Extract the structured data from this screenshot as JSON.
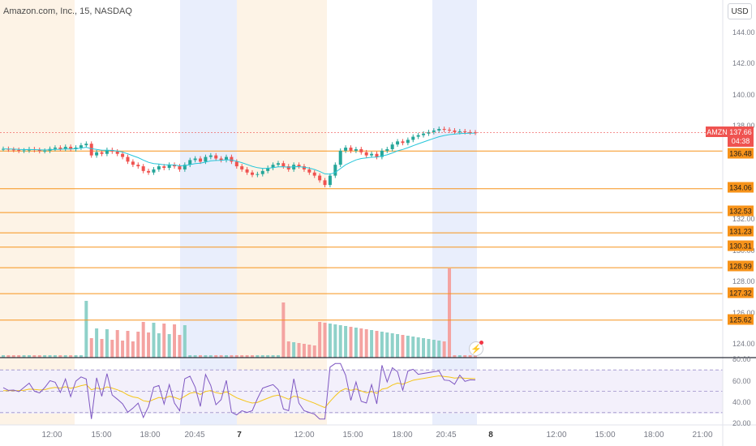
{
  "header": {
    "title": "Amazon.com, Inc., 15, NASDAQ",
    "currency": "USD"
  },
  "price_axis": {
    "ticks": [
      "144.00",
      "142.00",
      "140.00",
      "138.00",
      "132.00",
      "130.00",
      "128.00",
      "126.00",
      "124.00"
    ],
    "current": {
      "ticker": "AMZN",
      "price": "137.66",
      "countdown": "04:38"
    },
    "levels": [
      "136.48",
      "134.06",
      "132.53",
      "131.23",
      "130.31",
      "128.99",
      "127.32",
      "125.62"
    ]
  },
  "osc_axis": {
    "ticks": [
      "80.00",
      "60.00",
      "40.00",
      "20.00"
    ]
  },
  "time_axis": {
    "ticks": [
      {
        "label": "12:00",
        "bold": false
      },
      {
        "label": "15:00",
        "bold": false
      },
      {
        "label": "18:00",
        "bold": false
      },
      {
        "label": "20:45",
        "bold": false
      },
      {
        "label": "7",
        "bold": true
      },
      {
        "label": "12:00",
        "bold": false
      },
      {
        "label": "15:00",
        "bold": false
      },
      {
        "label": "18:00",
        "bold": false
      },
      {
        "label": "20:45",
        "bold": false
      },
      {
        "label": "8",
        "bold": true
      },
      {
        "label": "12:00",
        "bold": false
      },
      {
        "label": "15:00",
        "bold": false
      },
      {
        "label": "18:00",
        "bold": false
      },
      {
        "label": "21:00",
        "bold": false
      }
    ]
  },
  "colors": {
    "up": "#26a69a",
    "down": "#ef5350",
    "level_line": "#f7931a",
    "ma_line": "#26c6da",
    "rsi_line": "#7e57c2",
    "rsi_ma": "#f5c518",
    "premarket_bg": "#fdf3e6",
    "afterhours_bg": "#e9eefc"
  },
  "icons": {
    "flash": "lightning-bolt-icon"
  },
  "chart_data": {
    "type": "candlestick",
    "symbol": "AMZN",
    "interval": "15",
    "ylim": [
      122,
      145
    ],
    "close_series": [
      136.62,
      136.58,
      136.55,
      136.5,
      136.52,
      136.6,
      136.55,
      136.48,
      136.5,
      136.62,
      136.7,
      136.62,
      136.75,
      136.6,
      136.7,
      136.85,
      136.95,
      136.2,
      136.4,
      136.3,
      136.55,
      136.45,
      136.3,
      136.1,
      135.8,
      135.6,
      135.5,
      135.2,
      135.1,
      135.3,
      135.5,
      135.4,
      135.6,
      135.5,
      135.3,
      135.6,
      135.9,
      136.0,
      135.8,
      136.1,
      136.2,
      136.0,
      135.9,
      136.1,
      135.8,
      135.5,
      135.3,
      135.1,
      134.95,
      135.0,
      135.2,
      135.4,
      135.6,
      135.7,
      135.5,
      135.3,
      135.6,
      135.5,
      135.3,
      135.1,
      134.9,
      134.6,
      134.3,
      134.9,
      135.6,
      136.5,
      136.7,
      136.5,
      136.6,
      136.4,
      136.2,
      136.3,
      136.1,
      136.5,
      136.6,
      136.9,
      137.1,
      137.0,
      137.2,
      137.4,
      137.5,
      137.6,
      137.7,
      137.8,
      137.9,
      137.85,
      137.8,
      137.7,
      137.75,
      137.7,
      137.68,
      137.66
    ],
    "levels": [
      136.48,
      134.06,
      132.53,
      131.23,
      130.31,
      128.99,
      127.32,
      125.62
    ],
    "last_price": 137.66,
    "rsi": {
      "ylim": [
        20,
        80
      ],
      "bands": [
        70,
        50,
        30
      ]
    }
  }
}
